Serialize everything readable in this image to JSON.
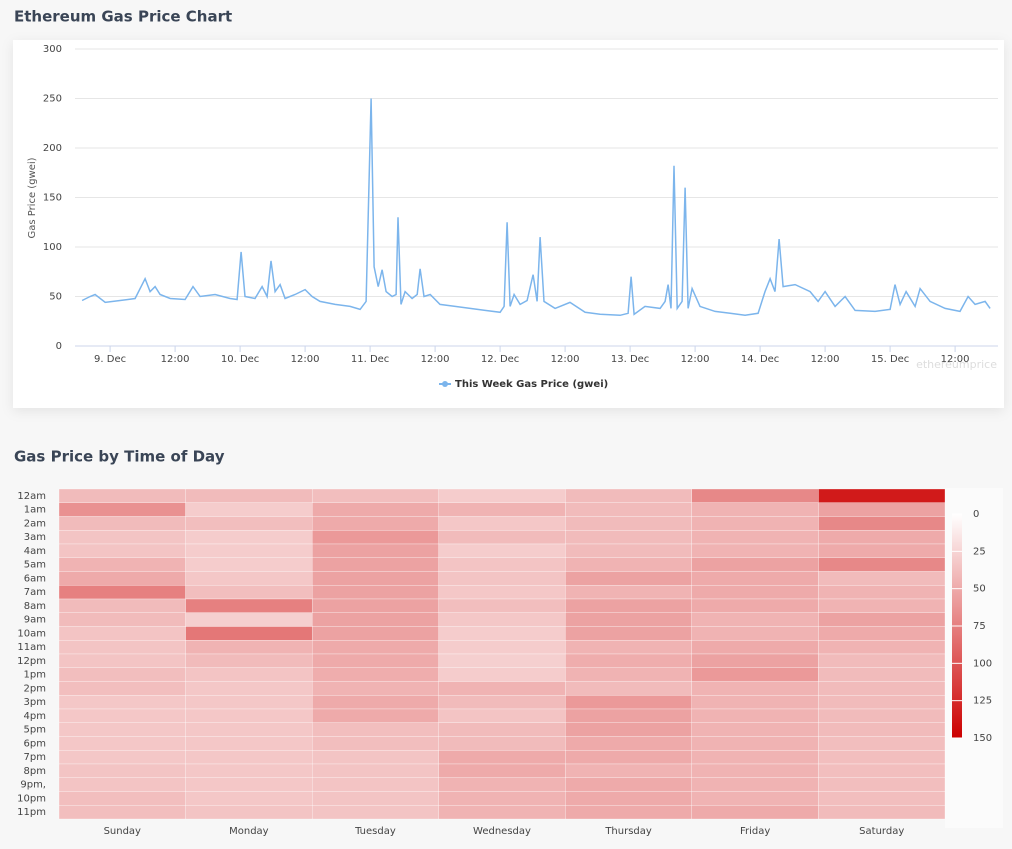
{
  "chart_data": [
    {
      "type": "line",
      "title": "Ethereum Gas Price Chart",
      "ylabel": "Gas Price (gwei)",
      "watermark": "ethereumprice",
      "x": [
        8.785,
        8.846,
        8.885,
        8.962,
        9.077,
        9.192,
        9.269,
        9.308,
        9.346,
        9.385,
        9.462,
        9.577,
        9.638,
        9.692,
        9.808,
        9.923,
        9.977,
        10.008,
        10.038,
        10.115,
        10.169,
        10.208,
        10.238,
        10.269,
        10.308,
        10.346,
        10.423,
        10.5,
        10.554,
        10.615,
        10.731,
        10.846,
        10.923,
        10.969,
        11.008,
        11.031,
        11.062,
        11.092,
        11.123,
        11.169,
        11.2,
        11.215,
        11.238,
        11.269,
        11.323,
        11.362,
        11.385,
        11.415,
        11.462,
        11.538,
        11.654,
        11.769,
        11.885,
        12.0,
        12.031,
        12.054,
        12.077,
        12.108,
        12.154,
        12.208,
        12.254,
        12.285,
        12.308,
        12.338,
        12.423,
        12.538,
        12.654,
        12.769,
        12.923,
        12.985,
        13.008,
        13.031,
        13.115,
        13.231,
        13.269,
        13.292,
        13.315,
        13.338,
        13.362,
        13.4,
        13.423,
        13.446,
        13.477,
        13.538,
        13.654,
        13.769,
        13.885,
        13.985,
        14.038,
        14.077,
        14.115,
        14.146,
        14.177,
        14.269,
        14.385,
        14.446,
        14.5,
        14.577,
        14.654,
        14.731,
        14.885,
        15.0,
        15.038,
        15.077,
        15.123,
        15.192,
        15.231,
        15.308,
        15.423,
        15.538,
        15.6,
        15.654,
        15.731,
        15.769
      ],
      "series": [
        {
          "name": "This Week Gas Price (gwei)",
          "color": "#7cb5ec",
          "values": [
            46,
            50,
            52,
            44,
            46,
            48,
            68,
            55,
            60,
            52,
            48,
            47,
            60,
            50,
            52,
            48,
            47,
            95,
            50,
            48,
            60,
            50,
            86,
            55,
            62,
            48,
            52,
            57,
            50,
            45,
            42,
            40,
            37,
            45,
            250,
            80,
            60,
            77,
            55,
            50,
            52,
            130,
            42,
            55,
            48,
            52,
            78,
            50,
            52,
            42,
            40,
            38,
            36,
            34,
            40,
            125,
            40,
            52,
            42,
            46,
            72,
            45,
            110,
            45,
            38,
            44,
            34,
            32,
            31,
            33,
            70,
            32,
            40,
            38,
            45,
            62,
            38,
            182,
            38,
            45,
            160,
            38,
            58,
            40,
            35,
            33,
            31,
            33,
            55,
            68,
            55,
            108,
            60,
            62,
            55,
            45,
            55,
            40,
            50,
            36,
            35,
            37,
            62,
            42,
            55,
            40,
            58,
            45,
            38,
            35,
            50,
            42,
            45,
            38
          ]
        }
      ],
      "xlim": [
        8.73,
        15.83
      ],
      "ylim": [
        0,
        300
      ],
      "xticks": [
        {
          "value": 9,
          "label": "9. Dec"
        },
        {
          "value": 9.5,
          "label": "12:00"
        },
        {
          "value": 10,
          "label": "10. Dec"
        },
        {
          "value": 10.5,
          "label": "12:00"
        },
        {
          "value": 11,
          "label": "11. Dec"
        },
        {
          "value": 11.5,
          "label": "12:00"
        },
        {
          "value": 12,
          "label": "12. Dec"
        },
        {
          "value": 12.5,
          "label": "12:00"
        },
        {
          "value": 13,
          "label": "13. Dec"
        },
        {
          "value": 13.5,
          "label": "12:00"
        },
        {
          "value": 14,
          "label": "14. Dec"
        },
        {
          "value": 14.5,
          "label": "12:00"
        },
        {
          "value": 15,
          "label": "15. Dec"
        },
        {
          "value": 15.5,
          "label": "12:00"
        }
      ],
      "yticks": [
        0,
        50,
        100,
        150,
        200,
        250,
        300
      ],
      "grid": true
    },
    {
      "type": "heatmap",
      "title": "Gas Price by Time of Day",
      "categories": [
        "Sunday",
        "Monday",
        "Tuesday",
        "Wednesday",
        "Thursday",
        "Friday",
        "Saturday"
      ],
      "rows": [
        "12am",
        "1am",
        "2am",
        "3am",
        "4am",
        "5am",
        "6am",
        "7am",
        "8am",
        "9am",
        "10am",
        "11am",
        "12pm",
        "1pm",
        "2pm",
        "3pm",
        "4pm",
        "5pm",
        "6pm",
        "7pm",
        "8pm",
        "9pm,",
        "10pm",
        "11pm"
      ],
      "values": [
        [
          40,
          65,
          40,
          35,
          35,
          45,
          50,
          75,
          40,
          40,
          35,
          35,
          35,
          38,
          38,
          33,
          33,
          33,
          33,
          33,
          35,
          35,
          38,
          38
        ],
        [
          40,
          30,
          38,
          30,
          30,
          30,
          33,
          38,
          75,
          28,
          80,
          45,
          40,
          35,
          33,
          33,
          33,
          33,
          33,
          33,
          33,
          33,
          33,
          35
        ],
        [
          38,
          50,
          50,
          60,
          55,
          55,
          55,
          55,
          55,
          55,
          55,
          50,
          50,
          48,
          45,
          50,
          50,
          38,
          38,
          35,
          35,
          35,
          35,
          35
        ],
        [
          30,
          45,
          33,
          40,
          30,
          35,
          35,
          33,
          38,
          33,
          30,
          30,
          28,
          30,
          45,
          40,
          35,
          40,
          40,
          50,
          50,
          45,
          45,
          45
        ],
        [
          40,
          40,
          40,
          40,
          40,
          45,
          55,
          45,
          55,
          55,
          55,
          45,
          48,
          45,
          40,
          60,
          55,
          55,
          50,
          50,
          45,
          50,
          50,
          50
        ],
        [
          70,
          45,
          45,
          45,
          45,
          55,
          50,
          50,
          50,
          45,
          45,
          50,
          55,
          60,
          45,
          45,
          45,
          45,
          45,
          45,
          45,
          45,
          45,
          50
        ],
        [
          135,
          55,
          70,
          50,
          50,
          70,
          40,
          45,
          45,
          55,
          50,
          45,
          40,
          40,
          40,
          40,
          40,
          40,
          38,
          38,
          38,
          38,
          38,
          40
        ]
      ],
      "colors": [
        "#ffffff",
        "#cc0000"
      ],
      "clim": [
        0,
        150
      ],
      "cticks": [
        0,
        25,
        50,
        75,
        100,
        125,
        150
      ]
    }
  ]
}
